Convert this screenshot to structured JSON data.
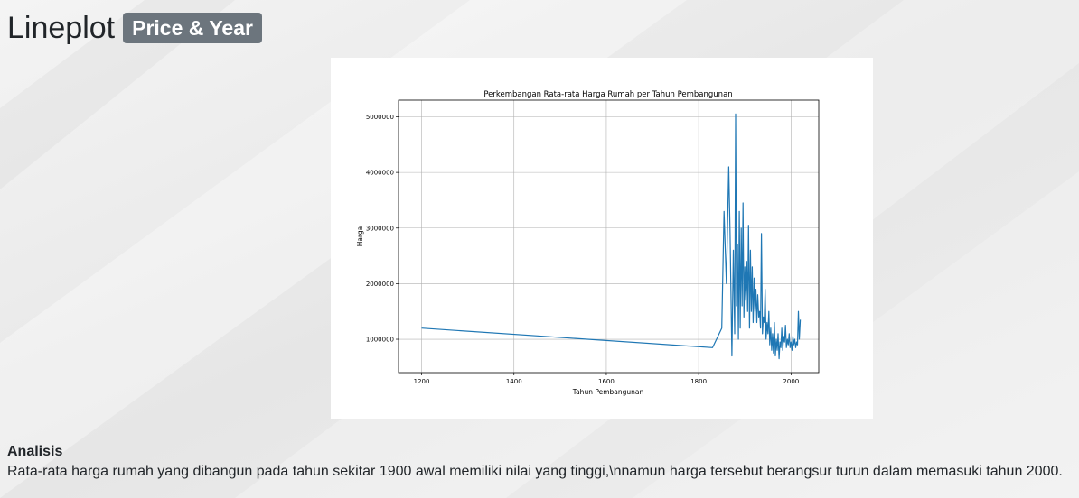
{
  "header": {
    "title": "Lineplot",
    "badge": "Price & Year"
  },
  "colors": {
    "badge_bg": "#6c757d",
    "line": "#1f77b4",
    "grid": "#b0b0b0"
  },
  "analysis": {
    "title": "Analisis",
    "text": "Rata-rata harga rumah yang dibangun pada tahun sekitar 1900 awal memiliki nilai yang tinggi,\\nnamun harga tersebut berangsur turun dalam memasuki tahun 2000."
  },
  "chart_data": {
    "type": "line",
    "title": "Perkembangan Rata-rata Harga Rumah per Tahun Pembangunan",
    "xlabel": "Tahun Pembangunan",
    "ylabel": "Harga",
    "xlim": [
      1150,
      2060
    ],
    "ylim": [
      400000,
      5300000
    ],
    "xticks": [
      1200,
      1400,
      1600,
      1800,
      2000
    ],
    "yticks": [
      1000000,
      2000000,
      3000000,
      4000000,
      5000000
    ],
    "grid": true,
    "series": [
      {
        "x": [
          1200,
          1830,
          1850,
          1855,
          1860,
          1865,
          1868,
          1872,
          1875,
          1878,
          1880,
          1882,
          1884,
          1886,
          1888,
          1890,
          1892,
          1894,
          1896,
          1898,
          1900,
          1902,
          1904,
          1906,
          1908,
          1910,
          1912,
          1914,
          1916,
          1918,
          1920,
          1922,
          1924,
          1926,
          1928,
          1930,
          1932,
          1934,
          1936,
          1938,
          1940,
          1942,
          1944,
          1946,
          1948,
          1950,
          1952,
          1954,
          1956,
          1958,
          1960,
          1962,
          1964,
          1966,
          1968,
          1970,
          1972,
          1974,
          1976,
          1978,
          1980,
          1982,
          1984,
          1986,
          1988,
          1990,
          1992,
          1994,
          1996,
          1998,
          2000,
          2002,
          2004,
          2006,
          2008,
          2010,
          2012,
          2014,
          2016,
          2018,
          2020
        ],
        "y": [
          1200000,
          850000,
          1200000,
          3300000,
          2000000,
          4100000,
          2900000,
          700000,
          2600000,
          1100000,
          5050000,
          1600000,
          2700000,
          1000000,
          3300000,
          1200000,
          3000000,
          1600000,
          3450000,
          1400000,
          2300000,
          1700000,
          2400000,
          1500000,
          3050000,
          1200000,
          2600000,
          1500000,
          2300000,
          1300000,
          2100000,
          1500000,
          1900000,
          1300000,
          1800000,
          1400000,
          1500000,
          1200000,
          2900000,
          1100000,
          1400000,
          1300000,
          1900000,
          1000000,
          1300000,
          1100000,
          1500000,
          900000,
          1200000,
          800000,
          1100000,
          750000,
          1300000,
          700000,
          1000000,
          800000,
          1100000,
          650000,
          950000,
          850000,
          1200000,
          800000,
          1050000,
          950000,
          1250000,
          850000,
          1000000,
          900000,
          1100000,
          850000,
          950000,
          800000,
          1050000,
          900000,
          1000000,
          850000,
          950000,
          900000,
          1500000,
          1000000,
          1350000
        ]
      }
    ]
  }
}
